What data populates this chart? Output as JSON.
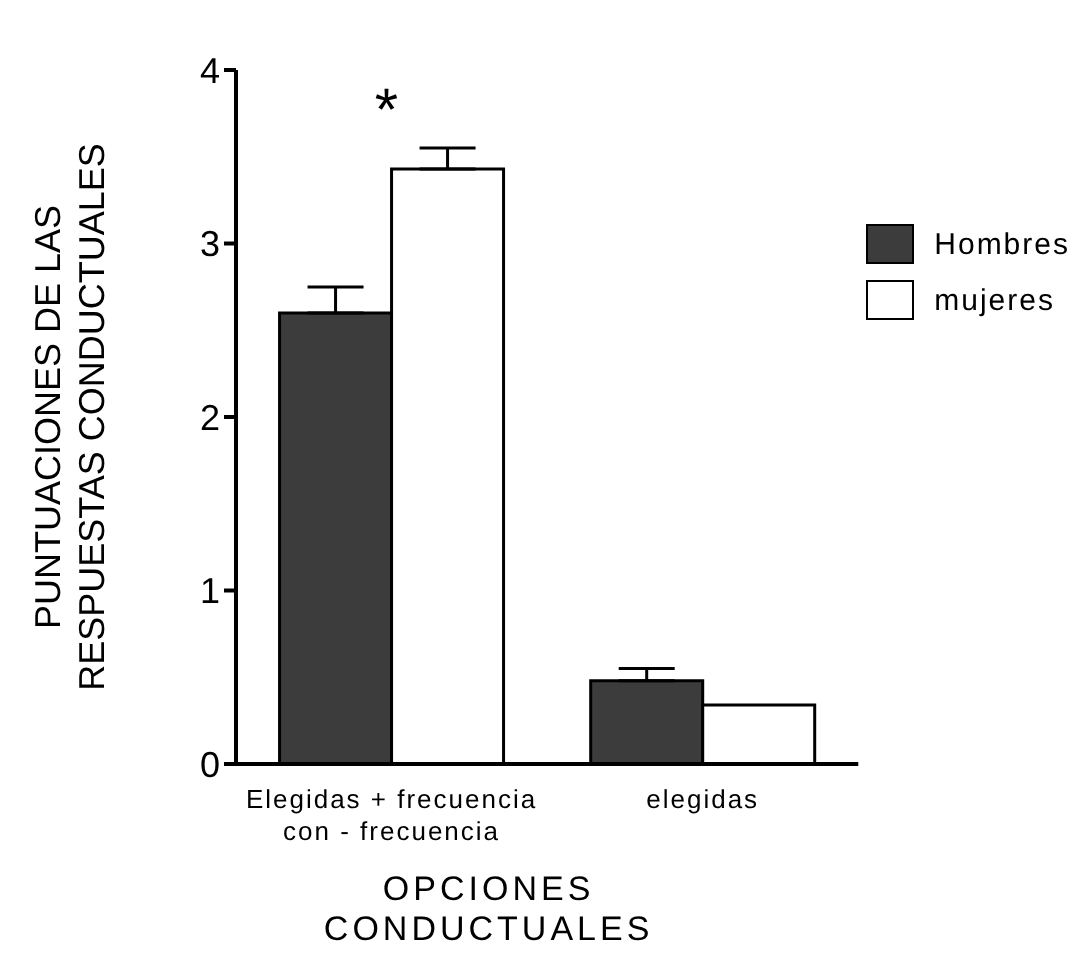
{
  "chart_data": {
    "type": "bar",
    "ylabel": "PUNTUACIONES DE LAS RESPUESTAS CONDUCTUALES",
    "xlabel": "OPCIONES CONDUCTUALES",
    "categories": [
      "Elegidas + frecuencia con - frecuencia",
      "elegidas"
    ],
    "series": [
      {
        "name": "Hombres",
        "color": "#3c3c3c",
        "values": [
          2.6,
          0.48
        ],
        "errors": [
          [
            2.6,
            2.75
          ],
          [
            0.48,
            0.55
          ]
        ]
      },
      {
        "name": "mujeres",
        "color": "#ffffff",
        "values": [
          3.43,
          0.34
        ],
        "errors": [
          [
            3.43,
            3.55
          ],
          null
        ]
      }
    ],
    "ylim": [
      0,
      4
    ],
    "yticks": [
      0,
      1,
      2,
      3,
      4
    ],
    "legend": "right",
    "annotations": [
      "*"
    ]
  }
}
